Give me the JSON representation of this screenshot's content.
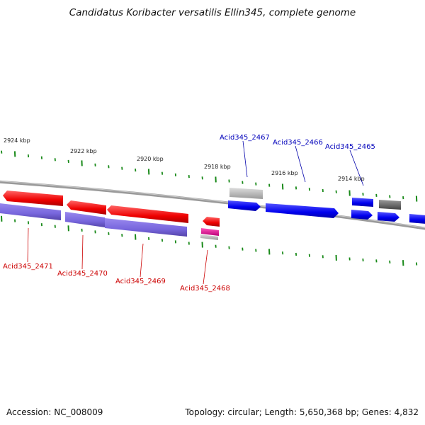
{
  "title": "Candidatus Koribacter versatilis Ellin345, complete genome",
  "footer": {
    "accession": "Accession: NC_008009",
    "summary": "Topology: circular; Length: 5,650,368 bp; Genes: 4,832"
  },
  "colors": {
    "forward": "#0000ee",
    "reverse": "#ee0000",
    "reverse_lane2": "#7766dd",
    "forward_label": "#0000bb",
    "reverse_label": "#cc0000",
    "backbone": "#888888",
    "ticks": "#1a8a1a",
    "pseudo_light": "#bbbbbb",
    "pseudo_dark": "#666666",
    "rna": "#ee1199"
  },
  "scale_labels": [
    "2924 kbp",
    "2922 kbp",
    "2920 kbp",
    "2918 kbp",
    "2916 kbp",
    "2914 kbp"
  ],
  "gene_labels": {
    "forward": [
      "Acid345_2467",
      "Acid345_2466",
      "Acid345_2465"
    ],
    "reverse": [
      "Acid345_2471",
      "Acid345_2470",
      "Acid345_2469",
      "Acid345_2468"
    ]
  }
}
